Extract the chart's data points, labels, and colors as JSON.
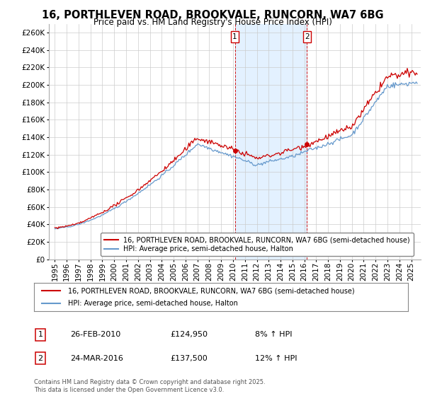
{
  "title": "16, PORTHLEVEN ROAD, BROOKVALE, RUNCORN, WA7 6BG",
  "subtitle": "Price paid vs. HM Land Registry's House Price Index (HPI)",
  "legend_line1": "16, PORTHLEVEN ROAD, BROOKVALE, RUNCORN, WA7 6BG (semi-detached house)",
  "legend_line2": "HPI: Average price, semi-detached house, Halton",
  "annotation1_label": "1",
  "annotation1_date": "26-FEB-2010",
  "annotation1_price": "£124,950",
  "annotation1_hpi": "8% ↑ HPI",
  "annotation1_year": 2010.15,
  "annotation2_label": "2",
  "annotation2_date": "24-MAR-2016",
  "annotation2_price": "£137,500",
  "annotation2_hpi": "12% ↑ HPI",
  "annotation2_year": 2016.23,
  "footer": "Contains HM Land Registry data © Crown copyright and database right 2025.\nThis data is licensed under the Open Government Licence v3.0.",
  "ylim": [
    0,
    270000
  ],
  "ytick_step": 20000,
  "line_color_red": "#cc0000",
  "line_color_blue": "#6699cc",
  "shaded_color": "#ddeeff",
  "annotation_color": "#cc0000",
  "grid_color": "#cccccc",
  "background_color": "#ffffff",
  "title_fontsize": 10.5,
  "subtitle_fontsize": 8.5,
  "axis_fontsize": 7.5
}
